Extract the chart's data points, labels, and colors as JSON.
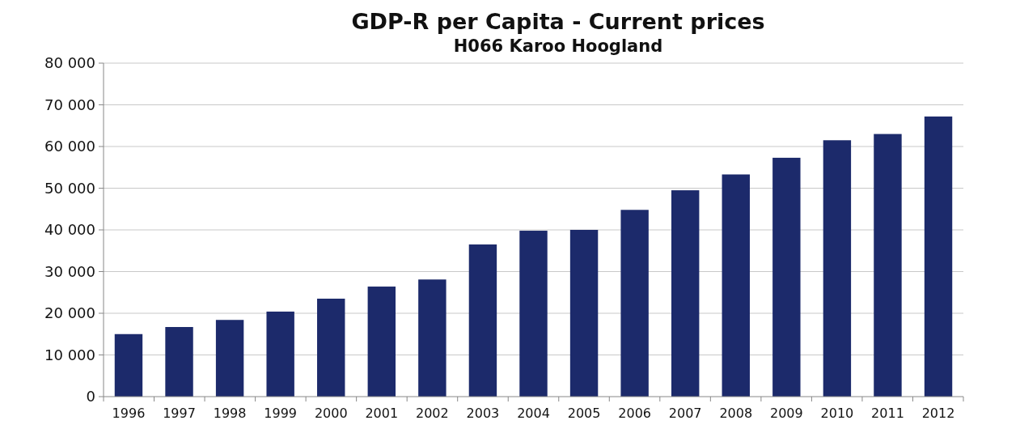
{
  "chart_data": {
    "type": "bar",
    "title": "GDP-R per Capita - Current prices",
    "subtitle": "H066 Karoo Hoogland",
    "categories": [
      "1996",
      "1997",
      "1998",
      "1999",
      "2000",
      "2001",
      "2002",
      "2003",
      "2004",
      "2005",
      "2006",
      "2007",
      "2008",
      "2009",
      "2010",
      "2011",
      "2012"
    ],
    "values": [
      15000,
      16700,
      18400,
      20400,
      23500,
      26400,
      28100,
      36500,
      39800,
      40000,
      44800,
      49500,
      53300,
      57300,
      61500,
      63000,
      67200
    ],
    "color": "#1c2a6b",
    "ylim": [
      0,
      80000
    ],
    "yticks": [
      0,
      {
        "value": 10000,
        "label": "10 000"
      },
      {
        "value": 20000,
        "label": "20 000"
      },
      {
        "value": 30000,
        "label": "30 000"
      },
      {
        "value": 40000,
        "label": "40 000"
      },
      {
        "value": 50000,
        "label": "50 000"
      },
      {
        "value": 60000,
        "label": "60 000"
      },
      {
        "value": 70000,
        "label": "70 000"
      },
      {
        "value": 80000,
        "label": "80 000"
      }
    ],
    "grid": "y"
  }
}
